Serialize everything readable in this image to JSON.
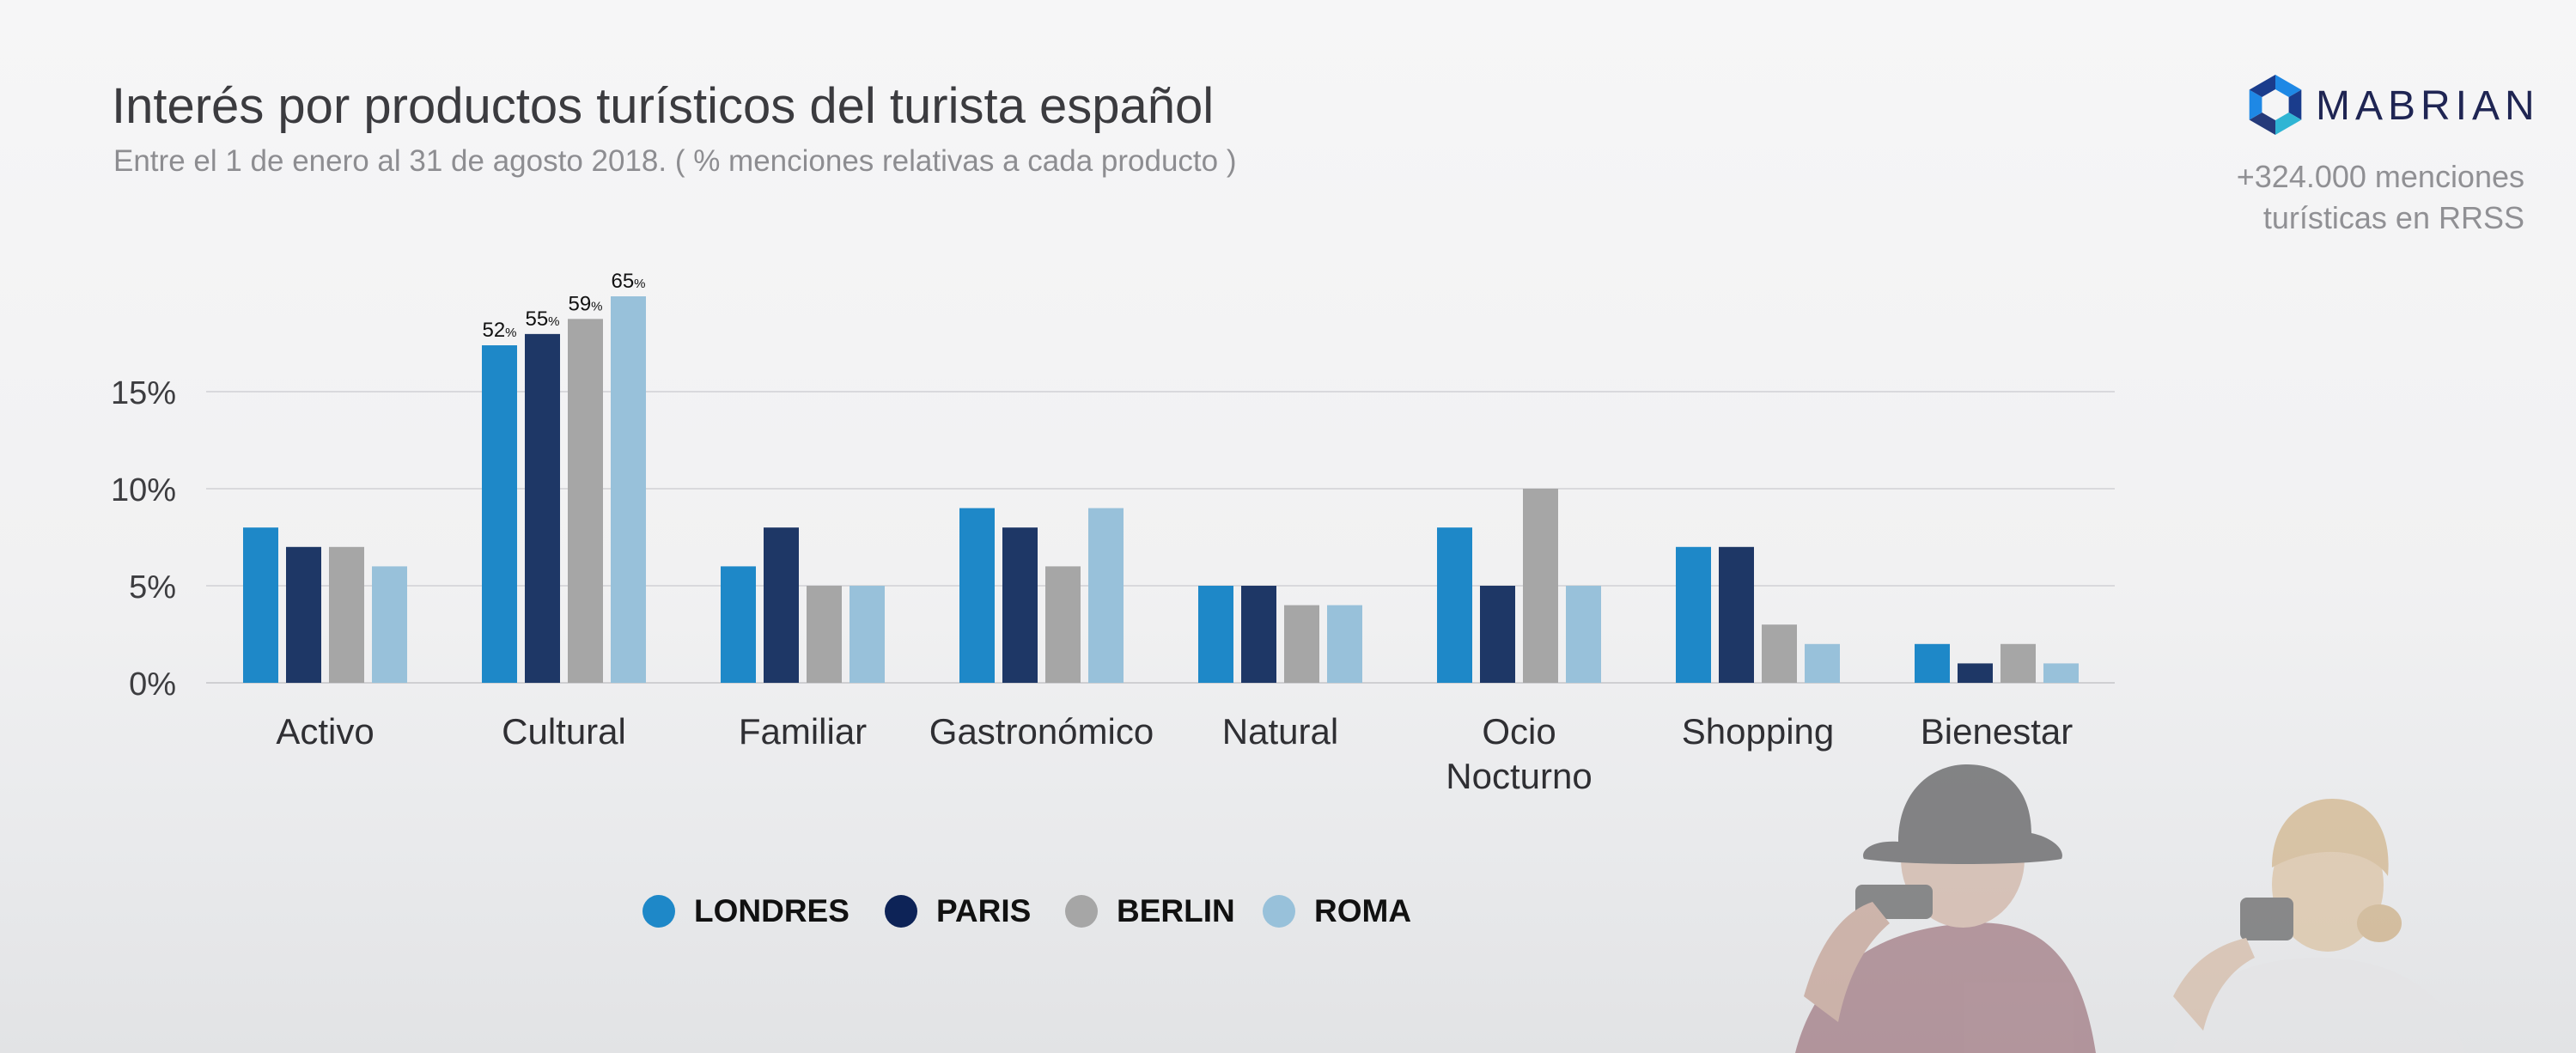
{
  "header": {
    "title": "Interés por productos turísticos del turista español",
    "subtitle": "Entre el 1 de enero al 31 de agosto 2018.  ( % menciones relativas a cada producto )"
  },
  "brand": {
    "logo_text": "MABRIAN",
    "mentions_line1": "+324.000 menciones",
    "mentions_line2": "turísticas en RRSS",
    "logo_colors": [
      "#1e88e5",
      "#1a3c8c",
      "#2fb5d4",
      "#253a7a"
    ]
  },
  "chart_data": {
    "type": "bar",
    "title": "Interés por productos turísticos del turista español",
    "subtitle": "Entre el 1 de enero al 31 de agosto 2018.  ( % menciones relativas a cada producto )",
    "xlabel": "",
    "ylabel": "",
    "categories": [
      "Activo",
      "Cultural",
      "Familiar",
      "Gastronómico",
      "Natural",
      "Ocio Nocturno",
      "Shopping",
      "Bienestar"
    ],
    "category_lines": [
      [
        "Activo"
      ],
      [
        "Cultural"
      ],
      [
        "Familiar"
      ],
      [
        "Gastronómico"
      ],
      [
        "Natural"
      ],
      [
        "Ocio",
        "Nocturno"
      ],
      [
        "Shopping"
      ],
      [
        "Bienestar"
      ]
    ],
    "series": [
      {
        "name": "LONDRES",
        "color": "#1e88c8",
        "values": [
          8,
          52,
          6,
          9,
          5,
          8,
          7,
          2
        ]
      },
      {
        "name": "PARIS",
        "color": "#1e3766",
        "values": [
          7,
          55,
          8,
          8,
          5,
          5,
          7,
          1
        ]
      },
      {
        "name": "BERLIN",
        "color": "#a6a6a6",
        "values": [
          7,
          59,
          5,
          6,
          4,
          10,
          3,
          2
        ]
      },
      {
        "name": "ROMA",
        "color": "#98c1da",
        "values": [
          6,
          65,
          5,
          9,
          4,
          5,
          2,
          1
        ]
      }
    ],
    "data_labels": {
      "category": "Cultural",
      "values": [
        "52",
        "55",
        "59",
        "65"
      ],
      "unit": "%"
    },
    "yticks": [
      "0%",
      "5%",
      "10%",
      "15%"
    ],
    "ytick_values": [
      0,
      5,
      10,
      15
    ],
    "ylim": [
      0,
      20
    ],
    "axis_break": true,
    "grid": true,
    "legend_position": "bottom-center"
  }
}
